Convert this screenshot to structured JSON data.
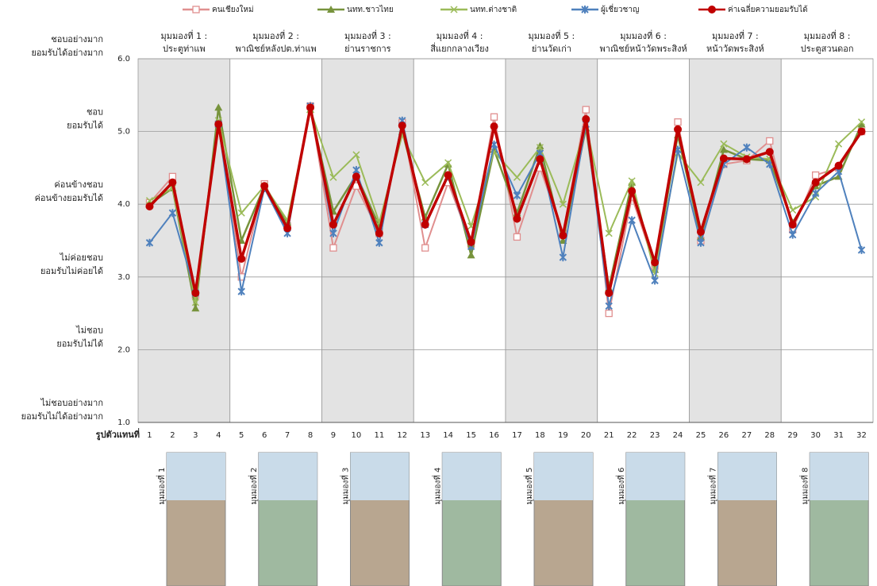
{
  "chart_data": {
    "type": "line",
    "x_label": "รูปตัวแทนที่",
    "categories": [
      "1",
      "2",
      "3",
      "4",
      "5",
      "6",
      "7",
      "8",
      "9",
      "10",
      "11",
      "12",
      "13",
      "14",
      "15",
      "16",
      "17",
      "18",
      "19",
      "20",
      "21",
      "22",
      "23",
      "24",
      "25",
      "26",
      "27",
      "28",
      "29",
      "30",
      "31",
      "32"
    ],
    "ylim": [
      1,
      6
    ],
    "yticks": [
      {
        "value": 1,
        "label": "1.0"
      },
      {
        "value": 2,
        "label": "2.0"
      },
      {
        "value": 3,
        "label": "3.0"
      },
      {
        "value": 4,
        "label": "4.0"
      },
      {
        "value": 5,
        "label": "5.0"
      },
      {
        "value": 6,
        "label": "6.0"
      }
    ],
    "level_labels": [
      [
        "ไม่ชอบอย่างมาก",
        "ยอมรับไม่ได้อย่างมาก"
      ],
      [
        "ไม่ชอบ",
        "ยอมรับไม่ได้"
      ],
      [
        "ไม่ค่อยชอบ",
        "ยอมรับไม่ค่อยได้"
      ],
      [
        "ค่อนข้างชอบ",
        "ค่อนข้างยอมรับได้"
      ],
      [
        "ชอบ",
        "ยอมรับได้"
      ],
      [
        "ชอบอย่างมาก",
        "ยอมรับได้อย่างมาก"
      ]
    ],
    "grid": true,
    "viewpoints": [
      [
        "มุมมองที่ 1 :",
        "ประตูท่าแพ"
      ],
      [
        "มุมมองที่ 2 :",
        "พาณิชย์หลังปต.ท่าแพ"
      ],
      [
        "มุมมองที่ 3 :",
        "ย่านราชการ"
      ],
      [
        "มุมมองที่ 4 :",
        "สี่แยกกลางเวียง"
      ],
      [
        "มุมมองที่ 5 :",
        "ย่านวัดเก่า"
      ],
      [
        "มุมมองที่ 6 :",
        "พาณิชย์หน้าวัดพระสิงห์"
      ],
      [
        "มุมมองที่ 7 :",
        "หน้าวัดพระสิงห์"
      ],
      [
        "มุมมองที่ 8 :",
        "ประตูสวนดอก"
      ]
    ],
    "photo_labels": [
      "มุมมองที่ 1",
      "มุมมองที่ 2",
      "มุมมองที่ 3",
      "มุมมองที่ 4",
      "มุมมองที่ 5",
      "มุมมองที่ 6",
      "มุมมองที่ 7",
      "มุมมองที่ 8"
    ],
    "series": [
      {
        "name": "คนเชียงใหม่",
        "color": "#e08f8f",
        "marker": "square",
        "values": [
          4.02,
          4.38,
          2.75,
          5.1,
          3.0,
          4.28,
          3.7,
          5.35,
          3.4,
          4.25,
          3.6,
          5.12,
          3.4,
          4.3,
          3.45,
          5.2,
          3.55,
          4.5,
          3.6,
          5.3,
          2.5,
          4.1,
          3.15,
          5.13,
          3.5,
          4.55,
          4.6,
          4.87,
          3.65,
          4.4,
          4.5,
          5.0
        ]
      },
      {
        "name": "นทท.ชาวไทย",
        "color": "#77933c",
        "marker": "triangle",
        "values": [
          4.0,
          4.22,
          2.57,
          5.33,
          3.5,
          4.25,
          3.75,
          5.3,
          3.9,
          4.4,
          3.7,
          5.0,
          3.82,
          4.55,
          3.3,
          4.75,
          3.88,
          4.8,
          3.5,
          5.05,
          2.85,
          4.3,
          3.1,
          4.95,
          3.55,
          4.75,
          4.62,
          4.6,
          3.75,
          4.25,
          4.38,
          5.1
        ]
      },
      {
        "name": "นทท.ต่างชาติ",
        "color": "#9bbb59",
        "marker": "cross",
        "values": [
          4.05,
          4.22,
          2.65,
          5.15,
          3.88,
          4.25,
          3.78,
          5.3,
          4.37,
          4.68,
          3.75,
          4.95,
          4.3,
          4.57,
          3.7,
          4.72,
          4.37,
          4.78,
          4.0,
          5.1,
          3.6,
          4.32,
          3.05,
          4.7,
          4.3,
          4.83,
          4.65,
          4.62,
          3.92,
          4.1,
          4.83,
          5.13
        ]
      },
      {
        "name": "ผู้เชี่ยวชาญ",
        "color": "#4f81bd",
        "marker": "star",
        "values": [
          3.47,
          3.88,
          2.78,
          5.1,
          2.8,
          4.22,
          3.6,
          5.35,
          3.6,
          4.47,
          3.47,
          5.15,
          3.72,
          4.38,
          3.42,
          4.82,
          4.12,
          4.7,
          3.27,
          5.1,
          2.6,
          3.78,
          2.95,
          4.75,
          3.47,
          4.55,
          4.78,
          4.55,
          3.58,
          4.15,
          4.45,
          3.37
        ]
      },
      {
        "name": "ค่าเฉลี่ยความยอมรับได้",
        "color": "#c00000",
        "marker": "circle",
        "values": [
          3.97,
          4.3,
          2.78,
          5.1,
          3.25,
          4.25,
          3.67,
          5.33,
          3.72,
          4.38,
          3.6,
          5.08,
          3.72,
          4.4,
          3.48,
          5.07,
          3.8,
          4.62,
          3.57,
          5.17,
          2.78,
          4.18,
          3.2,
          5.03,
          3.62,
          4.63,
          4.62,
          4.72,
          3.72,
          4.3,
          4.53,
          5.0
        ]
      }
    ]
  }
}
